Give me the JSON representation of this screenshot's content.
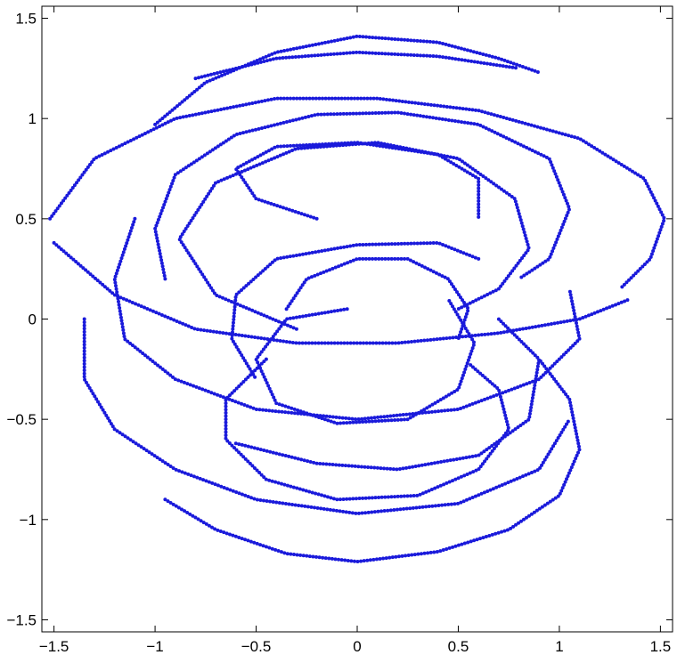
{
  "chart_data": {
    "type": "line",
    "color": "#1a1adb",
    "xlim": [
      -1.56,
      1.56
    ],
    "ylim": [
      -1.56,
      1.56
    ],
    "xticks": [
      {
        "value": -1.5,
        "label": "−1.5"
      },
      {
        "value": -1,
        "label": "−1"
      },
      {
        "value": -0.5,
        "label": "−0.5"
      },
      0,
      0.5,
      1,
      1.5
    ],
    "yticks": [
      {
        "value": -1.5,
        "label": "−1.5"
      },
      {
        "value": -1,
        "label": "−1"
      },
      {
        "value": -0.5,
        "label": "−0.5"
      },
      0,
      0.5,
      1,
      1.5
    ],
    "series": [
      {
        "x": [
          -1.0,
          -0.75,
          -0.4,
          0,
          0.4,
          0.7,
          0.9
        ],
        "values": [
          0.97,
          1.18,
          1.33,
          1.41,
          1.38,
          1.3,
          1.23
        ]
      },
      {
        "x": [
          -0.8,
          -0.4,
          0,
          0.4,
          0.8
        ],
        "values": [
          1.2,
          1.3,
          1.33,
          1.31,
          1.25
        ]
      },
      {
        "x": [
          -1.52,
          -1.3,
          -0.9,
          -0.4,
          0.1,
          0.6,
          1.1,
          1.42,
          1.52,
          1.45,
          1.3
        ],
        "values": [
          0.5,
          0.8,
          1.0,
          1.1,
          1.1,
          1.04,
          0.9,
          0.7,
          0.5,
          0.3,
          0.15
        ]
      },
      {
        "x": [
          -1.5,
          -1.2,
          -0.8,
          -0.3,
          0.2,
          0.7,
          1.1,
          1.35
        ],
        "values": [
          0.38,
          0.12,
          -0.05,
          -0.12,
          -0.12,
          -0.07,
          0.0,
          0.1
        ]
      },
      {
        "x": [
          -0.95,
          -1.0,
          -0.9,
          -0.6,
          -0.2,
          0.2,
          0.6,
          0.95,
          1.05,
          0.95,
          0.8
        ],
        "values": [
          0.2,
          0.45,
          0.72,
          0.92,
          1.02,
          1.03,
          0.97,
          0.8,
          0.55,
          0.3,
          0.2
        ]
      },
      {
        "x": [
          -0.3,
          -0.7,
          -0.88,
          -0.7,
          -0.3,
          0.1,
          0.5,
          0.78,
          0.85,
          0.7,
          0.5
        ],
        "values": [
          -0.05,
          0.12,
          0.4,
          0.68,
          0.85,
          0.88,
          0.8,
          0.6,
          0.35,
          0.15,
          0.05
        ]
      },
      {
        "x": [
          -0.2,
          -0.5,
          -0.6,
          -0.4,
          0,
          0.4,
          0.6,
          0.6
        ],
        "values": [
          0.5,
          0.6,
          0.75,
          0.86,
          0.88,
          0.82,
          0.7,
          0.5
        ]
      },
      {
        "x": [
          -0.35,
          -0.25,
          0,
          0.25,
          0.45,
          0.55,
          0.5
        ],
        "values": [
          0.05,
          0.2,
          0.3,
          0.3,
          0.2,
          0.05,
          -0.1
        ]
      },
      {
        "x": [
          -0.05,
          -0.35,
          -0.5,
          -0.4,
          -0.1,
          0.25,
          0.5,
          0.58,
          0.45
        ],
        "values": [
          0.05,
          0,
          -0.2,
          -0.42,
          -0.52,
          -0.5,
          -0.35,
          -0.12,
          0.1
        ]
      },
      {
        "x": [
          0.6,
          0.4,
          0,
          -0.4,
          -0.6,
          -0.62,
          -0.5
        ],
        "values": [
          0.3,
          0.38,
          0.37,
          0.3,
          0.12,
          -0.1,
          -0.3
        ]
      },
      {
        "x": [
          -1.1,
          -1.2,
          -1.15,
          -0.9,
          -0.5,
          0,
          0.5,
          0.9,
          1.1,
          1.05
        ],
        "values": [
          0.5,
          0.2,
          -0.1,
          -0.3,
          -0.45,
          -0.5,
          -0.45,
          -0.3,
          -0.1,
          0.15
        ]
      },
      {
        "x": [
          -0.45,
          -0.65,
          -0.65,
          -0.45,
          -0.1,
          0.3,
          0.6,
          0.75,
          0.7,
          0.55
        ],
        "values": [
          -0.2,
          -0.4,
          -0.6,
          -0.8,
          -0.9,
          -0.88,
          -0.75,
          -0.55,
          -0.35,
          -0.22
        ]
      },
      {
        "x": [
          -0.6,
          -0.2,
          0.2,
          0.6,
          0.85,
          0.9,
          0.7
        ],
        "values": [
          -0.62,
          -0.72,
          -0.75,
          -0.68,
          -0.5,
          -0.2,
          0.0
        ]
      },
      {
        "x": [
          -1.35,
          -1.35,
          -1.2,
          -0.9,
          -0.5,
          0,
          0.5,
          0.9,
          1.05
        ],
        "values": [
          0.0,
          -0.3,
          -0.55,
          -0.75,
          -0.9,
          -0.97,
          -0.92,
          -0.75,
          -0.5
        ]
      },
      {
        "x": [
          -0.95,
          -0.7,
          -0.35,
          0,
          0.4,
          0.75,
          1.0,
          1.1,
          1.05,
          0.9
        ],
        "values": [
          -0.9,
          -1.05,
          -1.17,
          -1.21,
          -1.16,
          -1.05,
          -0.88,
          -0.65,
          -0.4,
          -0.2
        ]
      }
    ]
  }
}
